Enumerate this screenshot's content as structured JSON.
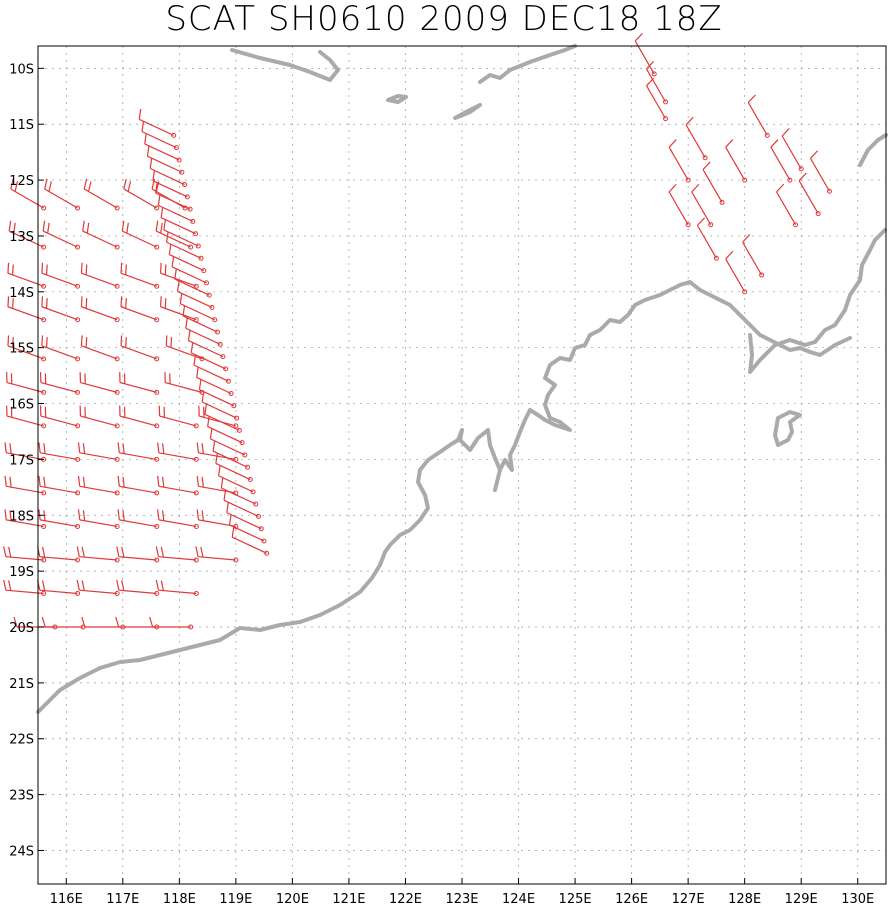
{
  "title": "SCAT SH0610 2009 DEC18 18Z",
  "colors": {
    "wind": "#e03838",
    "coast": "#aaaaaa",
    "grid": "#999999",
    "frame": "#000000"
  },
  "chart_data": {
    "type": "scatter",
    "title": "SCAT SH0610 2009 DEC18 18Z",
    "xlim": [
      115.5,
      130.5
    ],
    "ylim": [
      -24.6,
      -9.6
    ],
    "grid": true,
    "x_ticks": [
      "116E",
      "117E",
      "118E",
      "119E",
      "120E",
      "121E",
      "122E",
      "123E",
      "124E",
      "125E",
      "126E",
      "127E",
      "128E",
      "129E",
      "130E"
    ],
    "y_ticks": [
      "10S",
      "11S",
      "12S",
      "13S",
      "14S",
      "15S",
      "16S",
      "17S",
      "18S",
      "19S",
      "20S",
      "21S",
      "22S",
      "23S",
      "24S"
    ],
    "wind_barbs_swath_west": {
      "description": "scatterometer wind barbs, values approximate",
      "rows": [
        {
          "lat": -12.5,
          "lons": [
            115.6,
            116.2,
            116.9,
            117.6,
            118.1
          ],
          "dir_deg": 300,
          "speed_kt": 15
        },
        {
          "lat": -13.2,
          "lons": [
            115.6,
            116.2,
            116.9,
            117.6,
            118.2
          ],
          "dir_deg": 295,
          "speed_kt": 15
        },
        {
          "lat": -13.9,
          "lons": [
            115.6,
            116.2,
            116.9,
            117.6,
            118.3
          ],
          "dir_deg": 290,
          "speed_kt": 15
        },
        {
          "lat": -14.5,
          "lons": [
            115.6,
            116.2,
            116.9,
            117.6,
            118.3
          ],
          "dir_deg": 290,
          "speed_kt": 15
        },
        {
          "lat": -15.2,
          "lons": [
            115.6,
            116.2,
            116.9,
            117.6,
            118.4
          ],
          "dir_deg": 290,
          "speed_kt": 15
        },
        {
          "lat": -15.8,
          "lons": [
            115.6,
            116.2,
            116.9,
            117.6,
            118.4
          ],
          "dir_deg": 285,
          "speed_kt": 15
        },
        {
          "lat": -16.4,
          "lons": [
            115.6,
            116.2,
            116.9,
            117.6,
            118.3,
            119.0
          ],
          "dir_deg": 285,
          "speed_kt": 15
        },
        {
          "lat": -17.0,
          "lons": [
            115.6,
            116.2,
            116.9,
            117.6,
            118.3,
            119.0
          ],
          "dir_deg": 280,
          "speed_kt": 15
        },
        {
          "lat": -17.6,
          "lons": [
            115.6,
            116.2,
            116.9,
            117.6,
            118.3,
            119.0
          ],
          "dir_deg": 280,
          "speed_kt": 15
        },
        {
          "lat": -18.2,
          "lons": [
            115.6,
            116.2,
            116.9,
            117.6,
            118.3,
            119.0
          ],
          "dir_deg": 280,
          "speed_kt": 15
        },
        {
          "lat": -18.8,
          "lons": [
            115.6,
            116.2,
            116.9,
            117.6,
            118.3,
            119.0
          ],
          "dir_deg": 275,
          "speed_kt": 15
        },
        {
          "lat": -19.4,
          "lons": [
            115.6,
            116.2,
            116.9,
            117.6,
            118.3
          ],
          "dir_deg": 275,
          "speed_kt": 15
        },
        {
          "lat": -20.0,
          "lons": [
            115.8,
            116.3,
            117.0,
            117.6,
            118.2
          ],
          "dir_deg": 270,
          "speed_kt": 10
        }
      ]
    },
    "wind_barbs_swath_east": {
      "description": "scatterometer wind barbs, values approximate",
      "points": [
        {
          "lat": -10.1,
          "lon": 126.4
        },
        {
          "lat": -10.6,
          "lon": 126.6
        },
        {
          "lat": -10.9,
          "lon": 126.6
        },
        {
          "lat": -11.6,
          "lon": 127.3
        },
        {
          "lat": -12.0,
          "lon": 127.0
        },
        {
          "lat": -12.0,
          "lon": 128.0
        },
        {
          "lat": -12.4,
          "lon": 127.6
        },
        {
          "lat": -12.8,
          "lon": 127.0
        },
        {
          "lat": -12.8,
          "lon": 127.4
        },
        {
          "lat": -13.4,
          "lon": 127.5
        },
        {
          "lat": -13.7,
          "lon": 128.3
        },
        {
          "lat": -14.0,
          "lon": 128.0
        },
        {
          "lat": -12.0,
          "lon": 128.8
        },
        {
          "lat": -12.6,
          "lon": 129.3
        },
        {
          "lat": -12.8,
          "lon": 128.9
        },
        {
          "lat": -11.2,
          "lon": 128.4
        },
        {
          "lat": -11.8,
          "lon": 129.0
        },
        {
          "lat": -12.2,
          "lon": 129.5
        }
      ]
    }
  }
}
